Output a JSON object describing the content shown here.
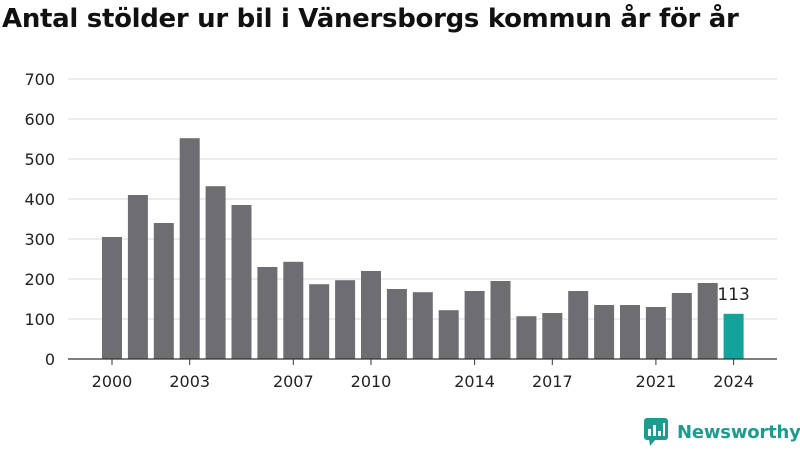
{
  "title": "Antal stölder ur bil i Vänersborgs kommun år för år",
  "brand": "Newsworthy",
  "colors": {
    "bar": "#6d6d72",
    "highlight": "#13a39a",
    "grid": "#d9d9d9",
    "brand": "#1c9b8e"
  },
  "chart_data": {
    "type": "bar",
    "title": "Antal stölder ur bil i Vänersborgs kommun år för år",
    "xlabel": "",
    "ylabel": "",
    "ylim": [
      0,
      700
    ],
    "yticks": [
      0,
      100,
      200,
      300,
      400,
      500,
      600,
      700
    ],
    "xtick_labels": [
      "2000",
      "2003",
      "2007",
      "2010",
      "2014",
      "2017",
      "2021",
      "2024"
    ],
    "grid": true,
    "categories": [
      "2000",
      "2001",
      "2002",
      "2003",
      "2004",
      "2005",
      "2006",
      "2007",
      "2008",
      "2009",
      "2010",
      "2011",
      "2012",
      "2013",
      "2014",
      "2015",
      "2016",
      "2017",
      "2018",
      "2019",
      "2020",
      "2021",
      "2022",
      "2023",
      "2024"
    ],
    "values": [
      305,
      410,
      340,
      552,
      432,
      385,
      230,
      243,
      187,
      197,
      220,
      175,
      167,
      122,
      170,
      195,
      107,
      115,
      170,
      135,
      135,
      130,
      165,
      190,
      113
    ],
    "highlight_index": 24,
    "annotations": [
      {
        "category": "2024",
        "text": "113"
      }
    ]
  }
}
